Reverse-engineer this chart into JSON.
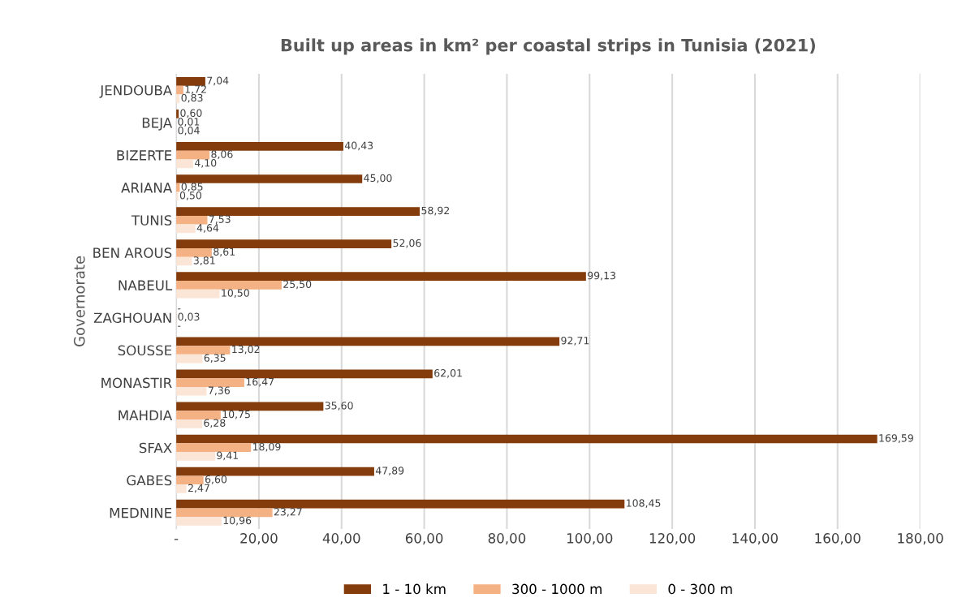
{
  "chart_data": {
    "type": "bar",
    "orientation": "horizontal",
    "title": "Built up areas in km² per coastal strips in Tunisia (2021)",
    "ylabel": "Governorate",
    "categories": [
      "JENDOUBA",
      "BEJA",
      "BIZERTE",
      "ARIANA",
      "TUNIS",
      "BEN AROUS",
      "NABEUL",
      "ZAGHOUAN",
      "SOUSSE",
      "MONASTIR",
      "MAHDIA",
      "SFAX",
      "GABES",
      "MEDNINE"
    ],
    "series": [
      {
        "name": "1 - 10 km",
        "color": "#843c0c",
        "values": [
          7.04,
          0.6,
          40.43,
          45.0,
          58.92,
          52.06,
          99.13,
          0,
          92.71,
          62.01,
          35.6,
          169.59,
          47.89,
          108.45
        ],
        "value_labels": [
          "7,04",
          "0,60",
          "40,43",
          "45,00",
          "58,92",
          "52,06",
          "99,13",
          "-",
          "92,71",
          "62,01",
          "35,60",
          "169,59",
          "47,89",
          "108,45"
        ]
      },
      {
        "name": "300 - 1000 m",
        "color": "#f4b183",
        "values": [
          1.72,
          0.01,
          8.06,
          0.85,
          7.53,
          8.61,
          25.5,
          0.03,
          13.02,
          16.47,
          10.75,
          18.09,
          6.6,
          23.27
        ],
        "value_labels": [
          "1,72",
          "0,01",
          "8,06",
          "0,85",
          "7,53",
          "8,61",
          "25,50",
          "0,03",
          "13,02",
          "16,47",
          "10,75",
          "18,09",
          "6,60",
          "23,27"
        ]
      },
      {
        "name": "0 - 300 m",
        "color": "#fbe5d6",
        "values": [
          0.83,
          0.04,
          4.1,
          0.5,
          4.64,
          3.81,
          10.5,
          0,
          6.35,
          7.36,
          6.28,
          9.41,
          2.47,
          10.96
        ],
        "value_labels": [
          "0,83",
          "0,04",
          "4,10",
          "0,50",
          "4,64",
          "3,81",
          "10,50",
          "-",
          "6,35",
          "7,36",
          "6,28",
          "9,41",
          "2,47",
          "10,96"
        ]
      }
    ],
    "xlim": [
      0,
      180
    ],
    "xticks": [
      {
        "value": 0,
        "label": "-"
      },
      {
        "value": 20,
        "label": "20,00"
      },
      {
        "value": 40,
        "label": "40,00"
      },
      {
        "value": 60,
        "label": "60,00"
      },
      {
        "value": 80,
        "label": "80,00"
      },
      {
        "value": 100,
        "label": "100,00"
      },
      {
        "value": 120,
        "label": "120,00"
      },
      {
        "value": 140,
        "label": "140,00"
      },
      {
        "value": 160,
        "label": "160,00"
      },
      {
        "value": 180,
        "label": "180,00"
      }
    ],
    "grid": "x",
    "legend": "bottom"
  }
}
